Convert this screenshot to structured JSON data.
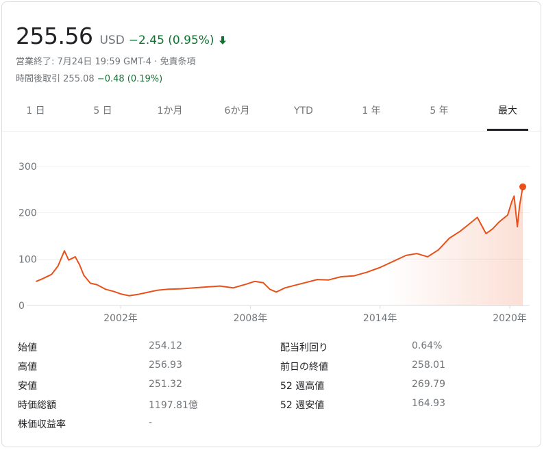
{
  "quote": {
    "price": "255.56",
    "currency": "USD",
    "change": "−2.45 (0.95%)",
    "status": "営業終了: 7月24日 19:59 GMT-4 · 免責条項",
    "after_hours_label": "時間後取引",
    "after_hours_price": "255.08",
    "after_hours_change": "−0.48 (0.19%)",
    "colors": {
      "down": "#137333",
      "line": "#e8501a"
    }
  },
  "tabs": [
    {
      "label": "1 日"
    },
    {
      "label": "5 日"
    },
    {
      "label": "1か月"
    },
    {
      "label": "6か月"
    },
    {
      "label": "YTD"
    },
    {
      "label": "1 年"
    },
    {
      "label": "5 年"
    },
    {
      "label": "最大",
      "active": true
    }
  ],
  "chart_data": {
    "type": "line",
    "title": "",
    "xlabel": "",
    "ylabel": "",
    "x_ticks": [
      "2002年",
      "2008年",
      "2014年",
      "2020年"
    ],
    "y_ticks": [
      0,
      100,
      200,
      300
    ],
    "ylim": [
      0,
      300
    ],
    "xlim": [
      1998.1,
      2020.6
    ],
    "grid": true,
    "series": [
      {
        "x": [
          1998.1,
          1998.4,
          1998.8,
          1999.1,
          1999.4,
          1999.6,
          1999.9,
          2000.1,
          2000.3,
          2000.6,
          2000.9,
          2001.3,
          2001.7,
          2002.0,
          2002.4,
          2002.8,
          2003.2,
          2003.7,
          2004.2,
          2004.8,
          2005.4,
          2006.0,
          2006.6,
          2007.2,
          2007.8,
          2008.2,
          2008.6,
          2008.9,
          2009.2,
          2009.6,
          2010.1,
          2010.6,
          2011.1,
          2011.6,
          2012.2,
          2012.8,
          2013.4,
          2014.0,
          2014.6,
          2015.2,
          2015.7,
          2016.2,
          2016.7,
          2017.2,
          2017.7,
          2018.1,
          2018.5,
          2018.9,
          2019.2,
          2019.5,
          2019.9,
          2020.1,
          2020.2,
          2020.35,
          2020.45,
          2020.6
        ],
        "y": [
          52,
          58,
          67,
          85,
          118,
          98,
          105,
          88,
          65,
          48,
          45,
          35,
          30,
          25,
          21,
          24,
          28,
          33,
          35,
          36,
          38,
          40,
          42,
          38,
          46,
          52,
          49,
          35,
          29,
          38,
          44,
          50,
          56,
          55,
          62,
          64,
          72,
          82,
          95,
          108,
          112,
          105,
          120,
          145,
          160,
          175,
          190,
          155,
          165,
          180,
          195,
          225,
          236,
          170,
          215,
          256
        ]
      }
    ]
  },
  "stats": {
    "left": [
      {
        "label": "始値",
        "value": "254.12"
      },
      {
        "label": "高値",
        "value": "256.93"
      },
      {
        "label": "安値",
        "value": "251.32"
      },
      {
        "label": "時価総額",
        "value": "1197.81億"
      },
      {
        "label": "株価収益率",
        "value": "-"
      }
    ],
    "right": [
      {
        "label": "配当利回り",
        "value": "0.64%"
      },
      {
        "label": "前日の終値",
        "value": "258.01"
      },
      {
        "label": "52 週高値",
        "value": "269.79"
      },
      {
        "label": "52 週安値",
        "value": "164.93"
      }
    ]
  }
}
